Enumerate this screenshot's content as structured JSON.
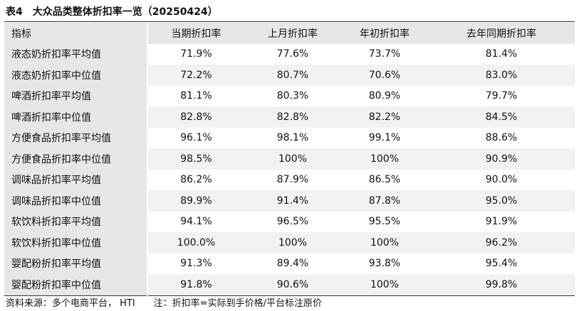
{
  "title": "表4　大众品类整体折扣率一览（20250424）",
  "table": {
    "header": [
      "指标",
      "当期折扣率",
      "上月折扣率",
      "年初折扣率",
      "去年同期折扣率"
    ],
    "rows": [
      [
        "液态奶折扣率平均值",
        "71.9%",
        "77.6%",
        "73.7%",
        "81.4%"
      ],
      [
        "液态奶折扣率中位值",
        "72.2%",
        "80.7%",
        "70.6%",
        "83.0%"
      ],
      [
        "啤酒折扣率平均值",
        "81.1%",
        "80.3%",
        "80.9%",
        "79.7%"
      ],
      [
        "啤酒折扣率中位值",
        "82.8%",
        "82.8%",
        "82.2%",
        "84.5%"
      ],
      [
        "方便食品折扣率平均值",
        "96.1%",
        "98.1%",
        "99.1%",
        "88.6%"
      ],
      [
        "方便食品折扣率中位值",
        "98.5%",
        "100%",
        "100%",
        "90.9%"
      ],
      [
        "调味品折扣率平均值",
        "86.2%",
        "87.9%",
        "86.5%",
        "90.0%"
      ],
      [
        "调味品折扣率中位值",
        "89.9%",
        "91.4%",
        "87.8%",
        "95.0%"
      ],
      [
        "软饮料折扣率平均值",
        "94.1%",
        "96.5%",
        "95.5%",
        "91.9%"
      ],
      [
        "软饮料折扣率中位值",
        "100.0%",
        "100%",
        "100%",
        "96.2%"
      ],
      [
        "婴配粉折扣率平均值",
        "91.3%",
        "89.4%",
        "93.8%",
        "95.4%"
      ],
      [
        "婴配粉折扣率中位值",
        "91.8%",
        "90.6%",
        "100%",
        "99.8%"
      ]
    ]
  },
  "source": "资料来源：多个电商平台，  HTI　　注：折扣率=实际到手价格/平台标注原价"
}
